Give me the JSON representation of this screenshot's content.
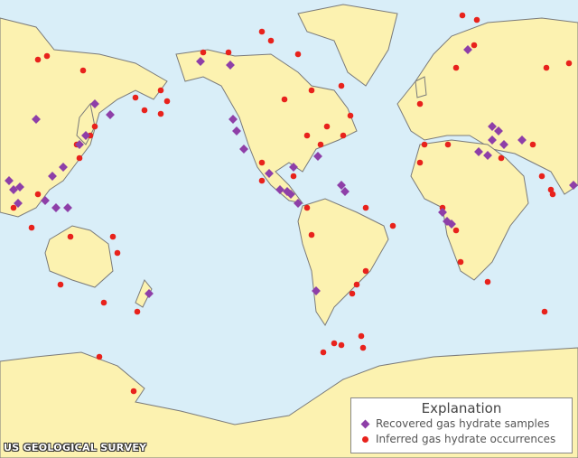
{
  "map": {
    "colors": {
      "ocean": "#d9eef8",
      "land": "#fcf2b0",
      "coast": "#7a7a7a",
      "recovered": "#8e3fa8",
      "inferred": "#e8221c"
    }
  },
  "legend": {
    "title": "Explanation",
    "items": [
      {
        "label": "Recovered gas hydrate samples",
        "icon": "purple-diamond"
      },
      {
        "label": "Inferred gas hydrate occurrences",
        "icon": "red-dot"
      }
    ]
  },
  "credit": "US GEOLOGICAL SURVEY"
}
